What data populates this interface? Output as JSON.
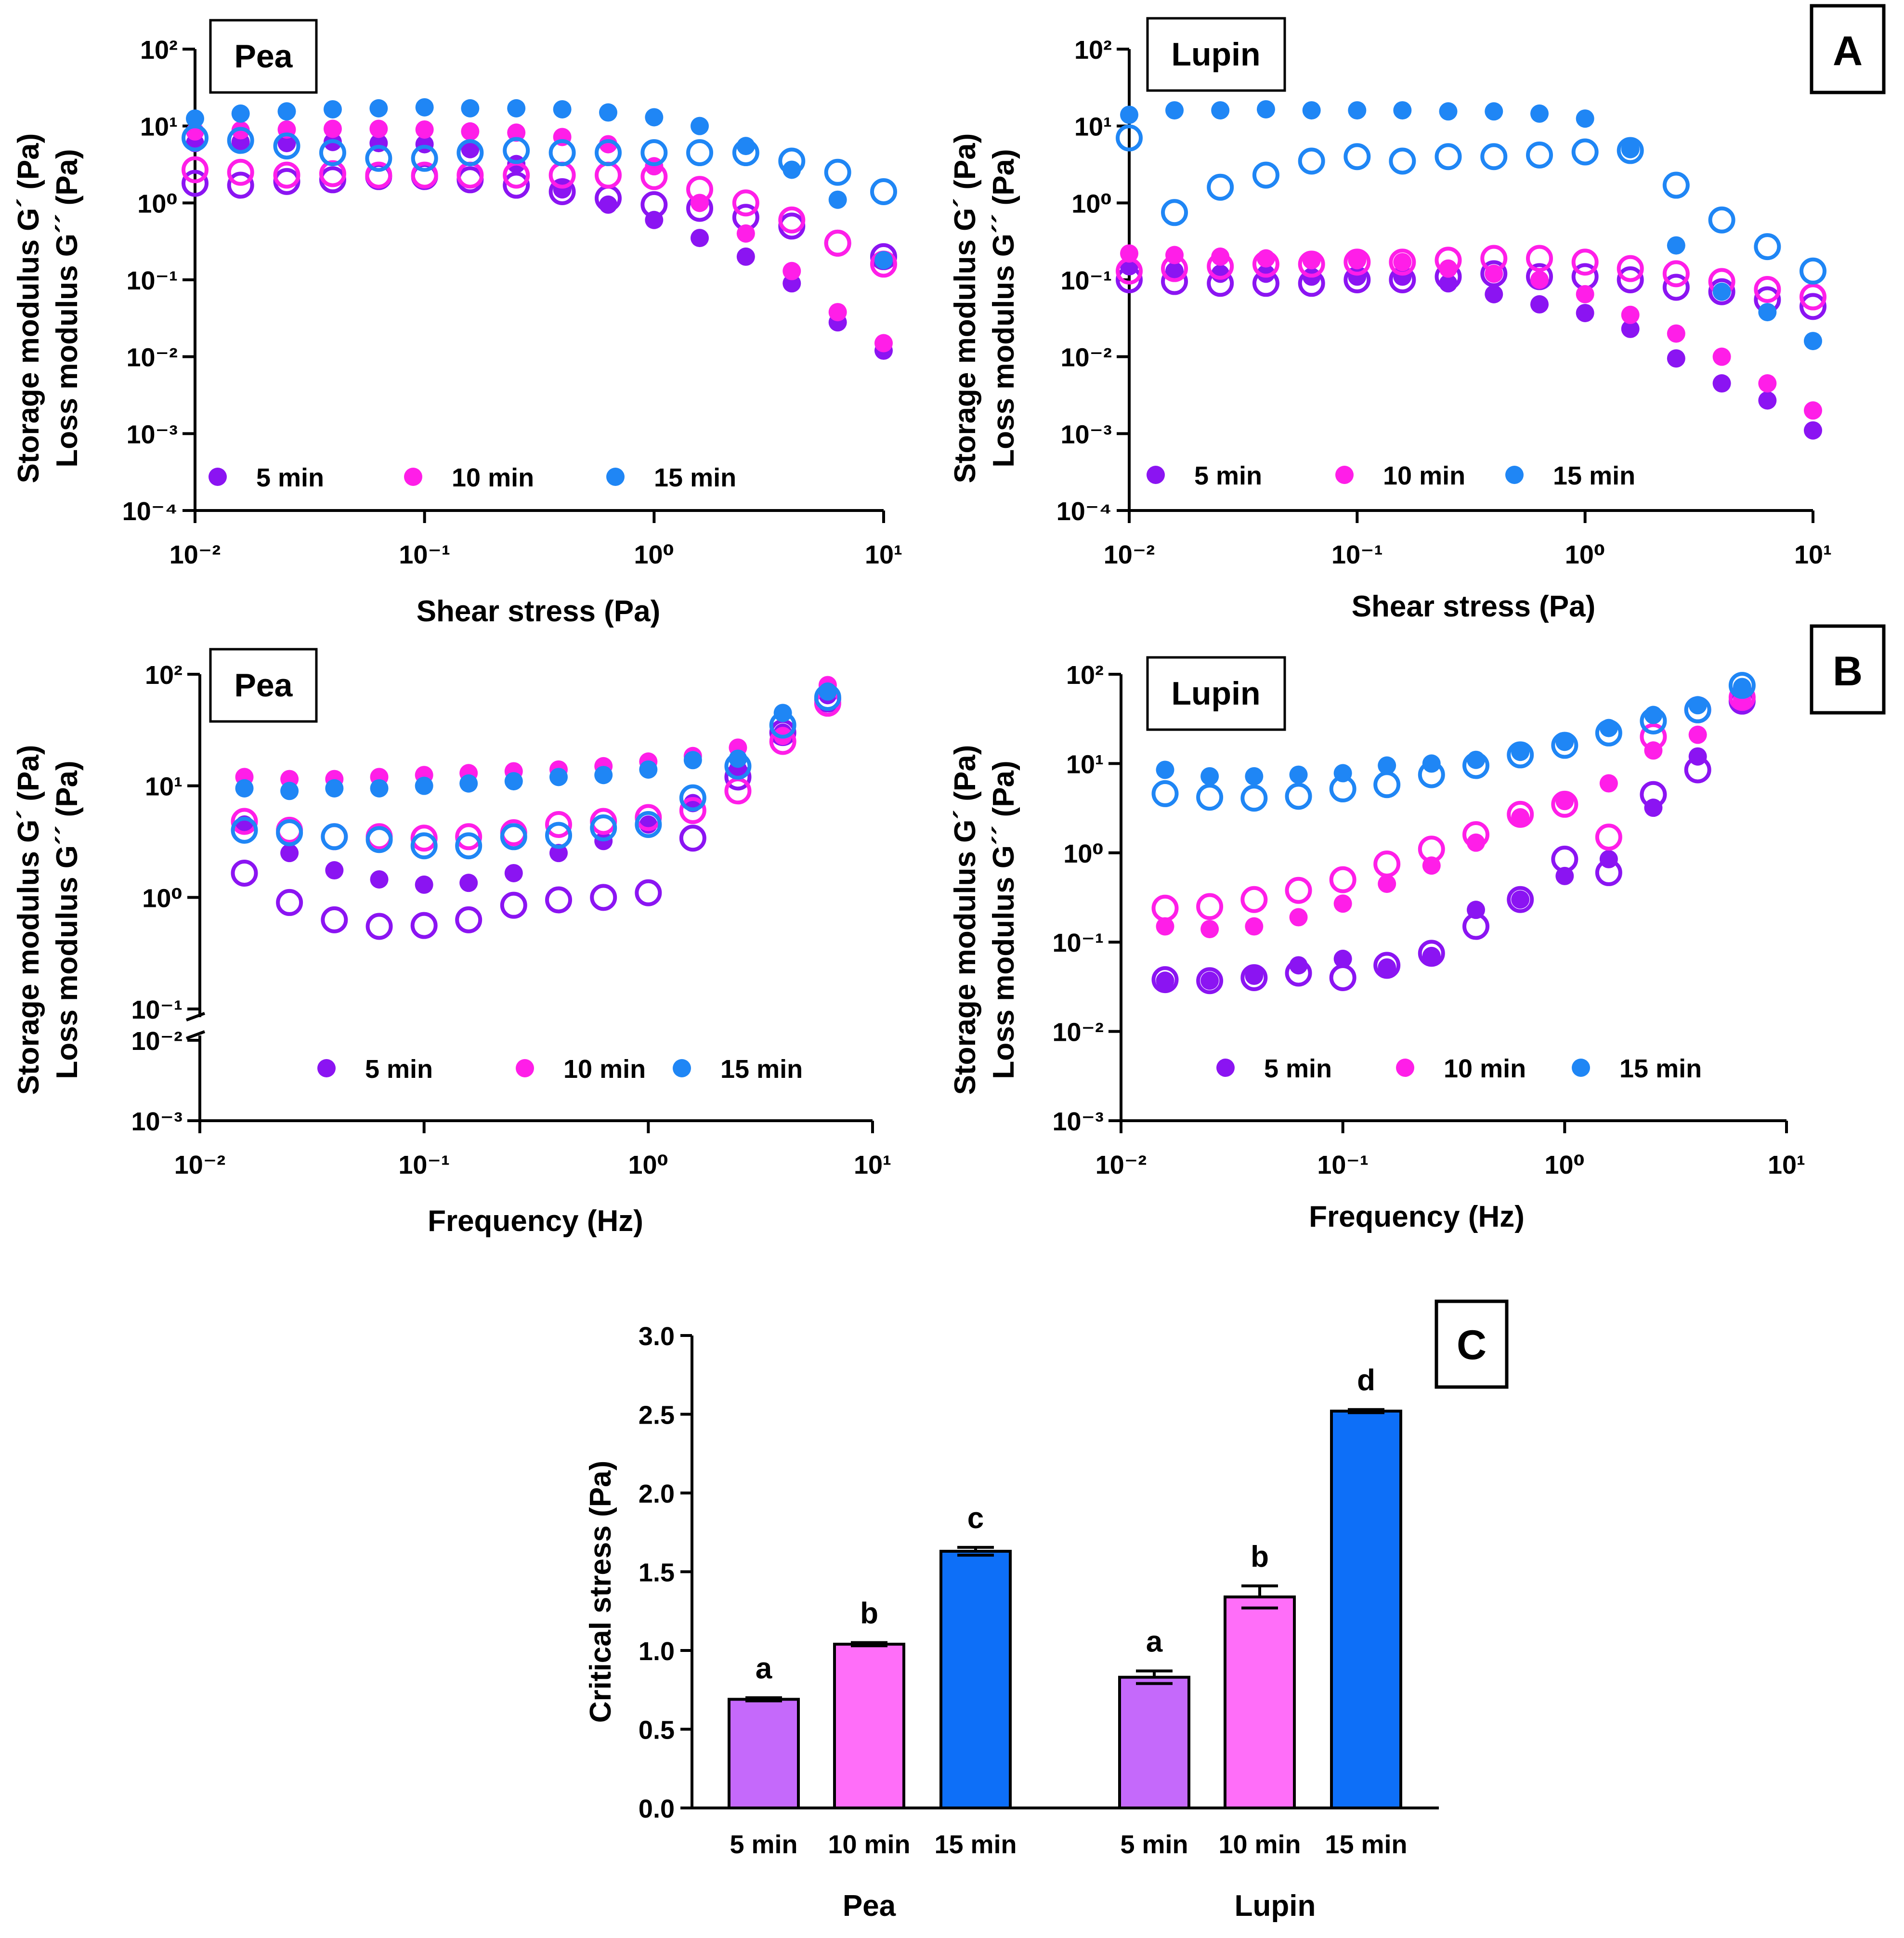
{
  "colors": {
    "min5": "#8b14f2",
    "min10": "#ff1ee8",
    "min15": "#1f86f5",
    "bar5": "#c569fb",
    "bar10": "#ff6ef9",
    "bar15": "#0d6ff8"
  },
  "legend": [
    "5 min",
    "10 min",
    "15 min"
  ],
  "yaxis_label": [
    "Storage modulus G´ (Pa)",
    "Loss modulus G´´ (Pa)"
  ],
  "panel_letters": {
    "A": "A",
    "B": "B",
    "C": "C"
  },
  "chart_data": [
    {
      "id": "a-pea",
      "type": "scatter",
      "title": "Pea",
      "xlabel": "Shear stress (Pa)",
      "ylabel": "Storage modulus G´ (Pa) / Loss modulus G´´ (Pa)",
      "xscale": "log",
      "yscale": "log",
      "xlim": [
        0.01,
        10
      ],
      "ylim": [
        0.0001,
        100
      ],
      "legend_position": "bottom",
      "x": [
        0.01,
        0.0158,
        0.0251,
        0.0398,
        0.0631,
        0.1,
        0.158,
        0.251,
        0.398,
        0.631,
        1.0,
        1.58,
        2.51,
        3.98,
        6.31,
        10.0
      ],
      "series": [
        {
          "name": "5 min G´ (filled)",
          "values": [
            6.0,
            6.2,
            6.0,
            6.2,
            6.0,
            5.8,
            5.0,
            3.2,
            1.5,
            0.95,
            0.6,
            0.35,
            0.2,
            0.09,
            0.028,
            0.012
          ]
        },
        {
          "name": "5 min G´´ (open)",
          "values": [
            1.8,
            1.7,
            1.9,
            2.0,
            2.2,
            2.2,
            2.0,
            1.7,
            1.4,
            1.15,
            0.95,
            0.85,
            0.65,
            0.5,
            0.3,
            0.2
          ]
        },
        {
          "name": "10 min G´ (filled)",
          "values": [
            8.5,
            8.8,
            9.0,
            9.2,
            9.2,
            9.0,
            8.5,
            8.2,
            7.2,
            5.8,
            3.0,
            1.0,
            0.4,
            0.13,
            0.038,
            0.015
          ]
        },
        {
          "name": "10 min G´´ (open)",
          "values": [
            2.7,
            2.5,
            2.3,
            2.4,
            2.3,
            2.3,
            2.3,
            2.3,
            2.3,
            2.3,
            2.2,
            1.5,
            1.0,
            0.6,
            0.3,
            0.16
          ]
        },
        {
          "name": "15 min G´ (filled)",
          "values": [
            12.5,
            14.5,
            15.5,
            16.5,
            17.0,
            17.5,
            17.0,
            17.0,
            16.5,
            15.0,
            13.0,
            10.0,
            5.5,
            2.7,
            1.1,
            0.18
          ]
        },
        {
          "name": "15 min G´´ (open)",
          "values": [
            7.0,
            6.5,
            5.5,
            4.5,
            3.8,
            3.8,
            4.5,
            4.8,
            4.5,
            4.5,
            4.5,
            4.5,
            4.5,
            3.5,
            2.5,
            1.4
          ]
        }
      ]
    },
    {
      "id": "a-lupin",
      "type": "scatter",
      "title": "Lupin",
      "xlabel": "Shear stress (Pa)",
      "ylabel": "Storage modulus G´ (Pa) / Loss modulus G´´ (Pa)",
      "xscale": "log",
      "yscale": "log",
      "xlim": [
        0.01,
        10
      ],
      "ylim": [
        0.0001,
        100
      ],
      "legend_position": "bottom",
      "x": [
        0.01,
        0.0158,
        0.0251,
        0.0398,
        0.0631,
        0.1,
        0.158,
        0.251,
        0.398,
        0.631,
        1.0,
        1.58,
        2.51,
        3.98,
        6.31,
        10.0
      ],
      "series": [
        {
          "name": "5 min G´ (filled)",
          "values": [
            0.15,
            0.13,
            0.12,
            0.12,
            0.11,
            0.11,
            0.11,
            0.09,
            0.065,
            0.048,
            0.037,
            0.023,
            0.0095,
            0.0045,
            0.0027,
            0.0011
          ]
        },
        {
          "name": "5 min G´´ (open)",
          "values": [
            0.1,
            0.095,
            0.09,
            0.09,
            0.09,
            0.1,
            0.1,
            0.11,
            0.12,
            0.11,
            0.11,
            0.1,
            0.08,
            0.07,
            0.055,
            0.045
          ]
        },
        {
          "name": "10 min G´ (filled)",
          "values": [
            0.22,
            0.21,
            0.2,
            0.19,
            0.18,
            0.18,
            0.17,
            0.14,
            0.12,
            0.1,
            0.065,
            0.035,
            0.02,
            0.01,
            0.0045,
            0.002
          ]
        },
        {
          "name": "10 min G´´ (open)",
          "values": [
            0.13,
            0.14,
            0.15,
            0.16,
            0.16,
            0.17,
            0.17,
            0.18,
            0.19,
            0.19,
            0.17,
            0.14,
            0.12,
            0.095,
            0.075,
            0.06
          ]
        },
        {
          "name": "15 min G´ (filled)",
          "values": [
            14.0,
            16.0,
            16.0,
            16.5,
            16.0,
            16.0,
            16.0,
            15.5,
            15.5,
            14.5,
            12.5,
            5.0,
            0.28,
            0.07,
            0.038,
            0.016
          ]
        },
        {
          "name": "15 min G´´ (open)",
          "values": [
            7.0,
            0.75,
            1.6,
            2.3,
            3.5,
            4.0,
            3.5,
            4.0,
            4.0,
            4.2,
            4.6,
            4.8,
            1.7,
            0.6,
            0.27,
            0.13
          ]
        }
      ]
    },
    {
      "id": "b-pea",
      "type": "scatter",
      "title": "Pea",
      "xlabel": "Frequency (Hz)",
      "ylabel": "Storage modulus G´ (Pa) / Loss modulus G´´ (Pa)",
      "xscale": "log",
      "yscale": "log",
      "xlim": [
        0.01,
        10
      ],
      "ylim": [
        0.001,
        100
      ],
      "axis_break": [
        0.01,
        0.1
      ],
      "legend_position": "bottom",
      "x": [
        0.0158,
        0.0251,
        0.0398,
        0.0631,
        0.1,
        0.158,
        0.251,
        0.398,
        0.631,
        1.0,
        1.58,
        2.51,
        3.98,
        6.31
      ],
      "series": [
        {
          "name": "5 min G´ (filled)",
          "values": [
            4.5,
            2.5,
            1.75,
            1.45,
            1.3,
            1.35,
            1.65,
            2.5,
            3.2,
            4.5,
            7.0,
            14.0,
            30.0,
            65.0
          ]
        },
        {
          "name": "5 min G´´ (open)",
          "values": [
            1.65,
            0.9,
            0.63,
            0.55,
            0.56,
            0.63,
            0.85,
            0.95,
            1.0,
            1.1,
            3.4,
            12.0,
            30.0,
            60.0
          ]
        },
        {
          "name": "10 min G´ (filled)",
          "values": [
            12.0,
            11.5,
            11.5,
            12.0,
            12.5,
            13.0,
            13.5,
            14.0,
            15.0,
            16.5,
            18.5,
            22.0,
            28.0,
            80.0
          ]
        },
        {
          "name": "10 min G´´ (open)",
          "values": [
            4.8,
            4.0,
            3.5,
            3.5,
            3.4,
            3.5,
            3.8,
            4.5,
            4.8,
            5.2,
            6.0,
            9.0,
            25.0,
            55.0
          ]
        },
        {
          "name": "15 min G´ (filled)",
          "values": [
            9.5,
            9.0,
            9.5,
            9.5,
            10.0,
            10.5,
            11.0,
            12.0,
            12.5,
            14.0,
            17.0,
            17.5,
            45.0,
            70.0
          ]
        },
        {
          "name": "15 min G´´ (open)",
          "values": [
            4.0,
            3.8,
            3.5,
            3.3,
            2.9,
            2.9,
            3.5,
            3.6,
            4.2,
            4.5,
            7.8,
            15.0,
            35.0,
            62.0
          ]
        }
      ]
    },
    {
      "id": "b-lupin",
      "type": "scatter",
      "title": "Lupin",
      "xlabel": "Frequency (Hz)",
      "ylabel": "Storage modulus G´ (Pa) / Loss modulus G´´ (Pa)",
      "xscale": "log",
      "yscale": "log",
      "xlim": [
        0.01,
        10
      ],
      "ylim": [
        0.001,
        100
      ],
      "legend_position": "bottom",
      "x": [
        0.0158,
        0.0251,
        0.0398,
        0.0631,
        0.1,
        0.158,
        0.251,
        0.398,
        0.631,
        1.0,
        1.58,
        2.51,
        3.98,
        6.31
      ],
      "series": [
        {
          "name": "5 min G´ (filled)",
          "values": [
            0.037,
            0.037,
            0.042,
            0.055,
            0.065,
            0.052,
            0.07,
            0.23,
            0.3,
            0.55,
            0.85,
            3.2,
            12.0,
            48.0
          ]
        },
        {
          "name": "5 min G´´ (open)",
          "values": [
            0.038,
            0.037,
            0.04,
            0.045,
            0.04,
            0.055,
            0.075,
            0.15,
            0.3,
            0.85,
            0.6,
            4.5,
            8.5,
            50.0
          ]
        },
        {
          "name": "10 min G´ (filled)",
          "values": [
            0.15,
            0.14,
            0.15,
            0.19,
            0.27,
            0.45,
            0.72,
            1.3,
            2.5,
            3.8,
            6.0,
            14.0,
            21.0,
            52.0
          ]
        },
        {
          "name": "10 min G´´ (open)",
          "values": [
            0.24,
            0.25,
            0.3,
            0.38,
            0.5,
            0.75,
            1.1,
            1.6,
            2.7,
            3.5,
            1.5,
            20.0,
            40.0,
            55.0
          ]
        },
        {
          "name": "15 min G´ (filled)",
          "values": [
            8.5,
            7.2,
            7.2,
            7.5,
            7.8,
            9.5,
            10.0,
            11.0,
            13.5,
            17.5,
            25.0,
            35.0,
            45.0,
            72.0
          ]
        },
        {
          "name": "15 min G´´ (open)",
          "values": [
            4.6,
            4.2,
            4.1,
            4.3,
            5.2,
            5.8,
            7.5,
            9.5,
            12.5,
            16.0,
            22.0,
            30.0,
            40.0,
            75.0
          ]
        }
      ]
    },
    {
      "id": "c-bars",
      "type": "bar",
      "title": "",
      "xlabel": "",
      "ylabel": "Critical stress (Pa)",
      "ylim": [
        0,
        3.0
      ],
      "yticks": [
        "0.0",
        "0.5",
        "1.0",
        "1.5",
        "2.0",
        "2.5",
        "3.0"
      ],
      "groups": [
        "Pea",
        "Lupin"
      ],
      "categories": [
        "5 min",
        "10 min",
        "15 min"
      ],
      "series": [
        {
          "name": "Pea",
          "values": [
            0.69,
            1.04,
            1.63
          ],
          "errors": [
            0.01,
            0.01,
            0.025
          ],
          "labels": [
            "a",
            "b",
            "c"
          ]
        },
        {
          "name": "Lupin",
          "values": [
            0.83,
            1.34,
            2.52
          ],
          "errors": [
            0.04,
            0.07,
            0.01
          ],
          "labels": [
            "a",
            "b",
            "d"
          ]
        }
      ]
    }
  ]
}
